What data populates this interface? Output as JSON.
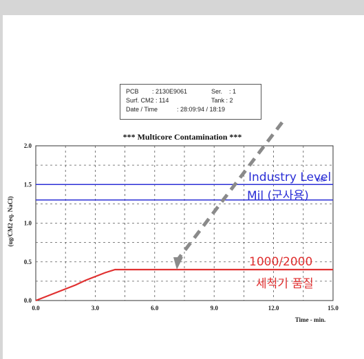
{
  "info_box": {
    "pcb_label": "PCB",
    "pcb_value": ": 2130E9061",
    "ser_label": "Ser.",
    "ser_value": ": 1",
    "surf_label": "Surf. CM2 : 114",
    "tank_label": "Tank : 2",
    "date_label": "Date / Time",
    "date_value": ": 28:09:94 / 18:19"
  },
  "chart_data": {
    "type": "line",
    "title": "*** Multicore Contamination ***",
    "xlabel": "Time - min.",
    "ylabel": "(ug/CM2 eq. NaCl)",
    "xlim": [
      0,
      15
    ],
    "ylim": [
      0,
      2.0
    ],
    "x_ticks": [
      "0.0",
      "3.0",
      "6.0",
      "9.0",
      "12.0",
      "15.0"
    ],
    "y_ticks": [
      "0.0",
      "0.5",
      "1.0",
      "1.5",
      "2.0"
    ],
    "grid": true,
    "series": [
      {
        "color": "#e03030",
        "x": [
          0,
          0.5,
          1,
          1.5,
          2,
          2.5,
          3,
          3.5,
          4,
          4.5,
          5,
          6,
          7,
          8,
          9,
          10,
          11,
          12,
          13,
          14,
          15
        ],
        "y": [
          0.0,
          0.05,
          0.1,
          0.15,
          0.2,
          0.26,
          0.31,
          0.36,
          0.4,
          0.4,
          0.4,
          0.4,
          0.4,
          0.4,
          0.4,
          0.4,
          0.4,
          0.4,
          0.4,
          0.4,
          0.4
        ]
      }
    ],
    "reference_lines": [
      {
        "y": 1.5,
        "color": "#2a2ed6"
      },
      {
        "y": 1.3,
        "color": "#2a2ed6"
      }
    ],
    "annotations": {
      "industry_level": "Industry Level",
      "industry_sub": "DEF",
      "mil": "Mil (군사용)",
      "quality_line1": "1000/2000",
      "quality_line2": "세척기 품질",
      "blue_color": "#2a2ed6",
      "red_color": "#e03030",
      "arrow_color": "#8a8a8a"
    }
  }
}
